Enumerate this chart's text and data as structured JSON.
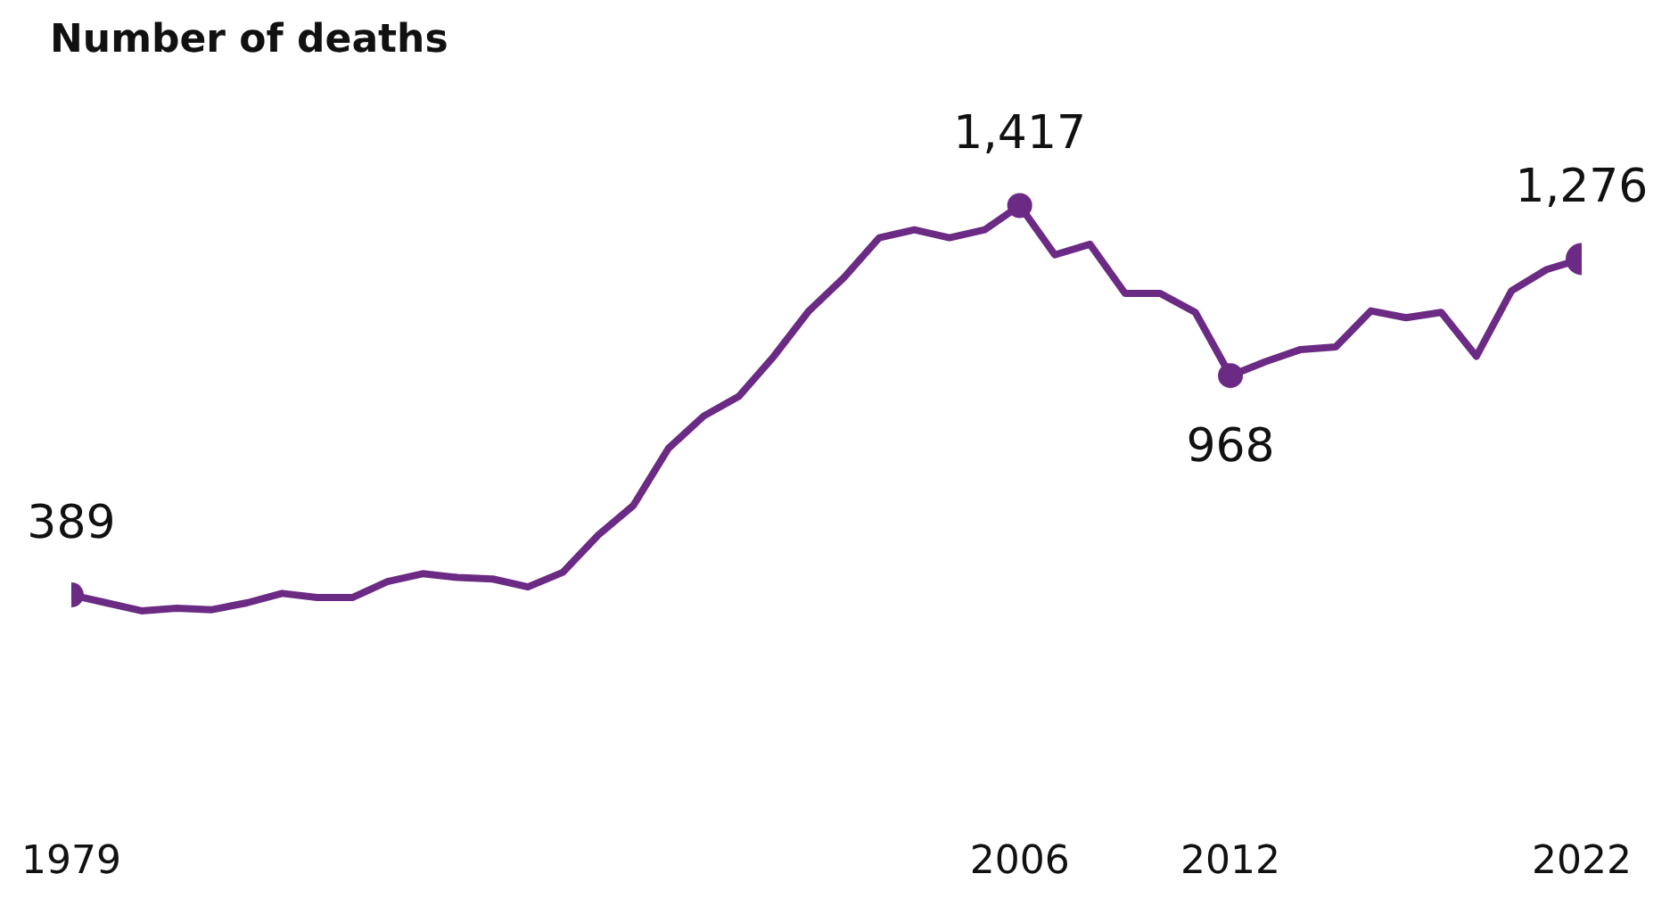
{
  "chart_data": {
    "type": "line",
    "title": "Number of deaths",
    "x": [
      1979,
      1980,
      1981,
      1982,
      1983,
      1984,
      1985,
      1986,
      1987,
      1988,
      1989,
      1990,
      1991,
      1992,
      1993,
      1994,
      1995,
      1996,
      1997,
      1998,
      1999,
      2000,
      2001,
      2002,
      2003,
      2004,
      2005,
      2006,
      2007,
      2008,
      2009,
      2010,
      2011,
      2012,
      2013,
      2014,
      2015,
      2016,
      2017,
      2018,
      2019,
      2020,
      2021,
      2022
    ],
    "series": [
      {
        "color": "#6b2a84",
        "values": [
          389,
          368,
          347,
          354,
          350,
          368,
          393,
          382,
          382,
          424,
          445,
          435,
          431,
          410,
          449,
          547,
          625,
          776,
          861,
          913,
          1019,
          1139,
          1227,
          1332,
          1353,
          1332,
          1353,
          1417,
          1287,
          1315,
          1185,
          1185,
          1135,
          968,
          1005,
          1037,
          1044,
          1139,
          1121,
          1135,
          1019,
          1192,
          1248,
          1276
        ],
        "value_labels": [
          "389",
          null,
          null,
          null,
          null,
          null,
          null,
          null,
          null,
          null,
          null,
          null,
          null,
          null,
          null,
          null,
          null,
          null,
          null,
          null,
          null,
          null,
          null,
          null,
          null,
          null,
          null,
          "1,417",
          null,
          null,
          null,
          null,
          null,
          "968",
          null,
          null,
          null,
          null,
          null,
          null,
          null,
          null,
          null,
          "1,276"
        ]
      }
    ],
    "xlim": [
      1979,
      2022
    ],
    "xticks": [
      1979,
      2006,
      2012,
      2022
    ],
    "line_style": "solid",
    "grid": false,
    "legend": false,
    "tick_labels": "x"
  }
}
